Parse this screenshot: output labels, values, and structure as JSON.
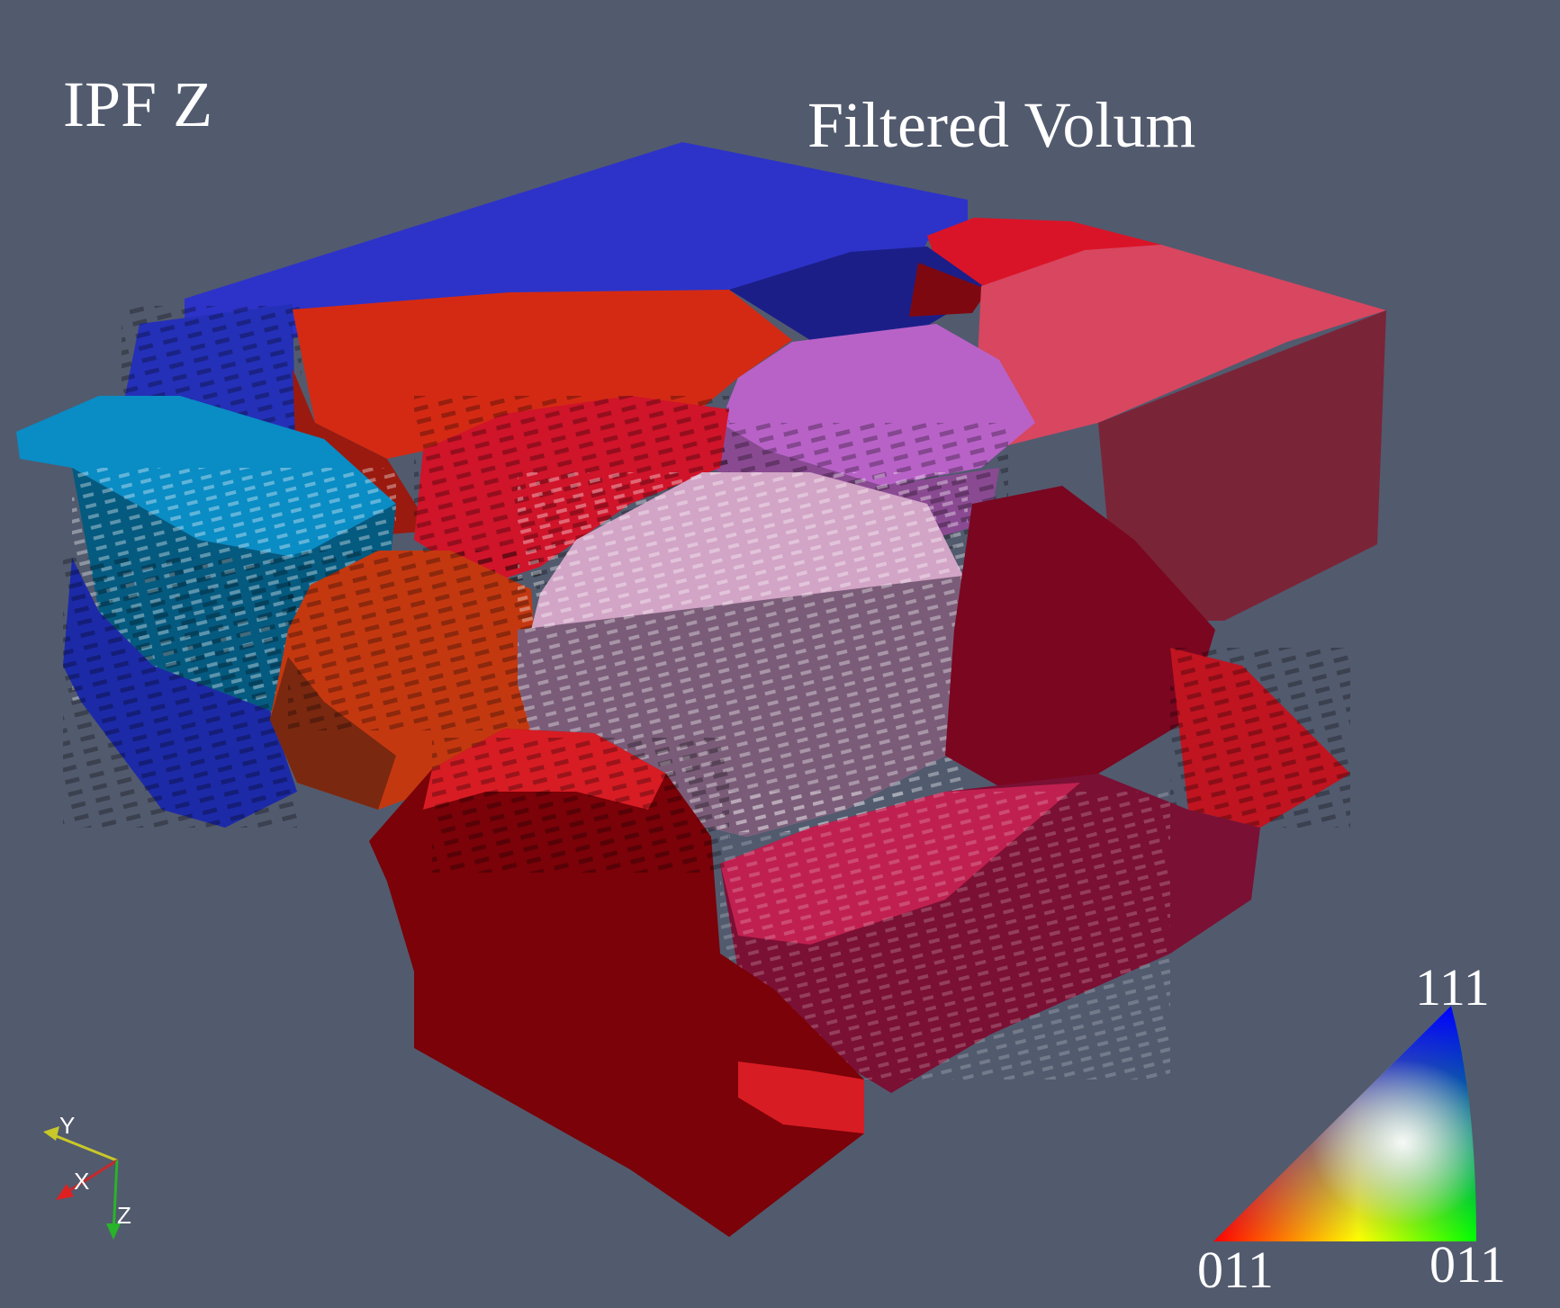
{
  "titles": {
    "ipf": "IPF Z",
    "volume": "Filtered Volum"
  },
  "legend": {
    "top": "111",
    "bottom_left": "011",
    "bottom_right": "011"
  },
  "axes": {
    "y": "Y",
    "x": "X",
    "z": "Z"
  },
  "colors": {
    "background": "#525a6e",
    "grain_blue": "#2d33c8",
    "grain_cyan": "#0a8cc4",
    "grain_red": "#d81c24",
    "grain_orange_red": "#d42a14",
    "grain_pink": "#d84660",
    "grain_purple": "#b862c8",
    "grain_lavender": "#d2a4c6",
    "grain_dark_red": "#7a0208"
  }
}
